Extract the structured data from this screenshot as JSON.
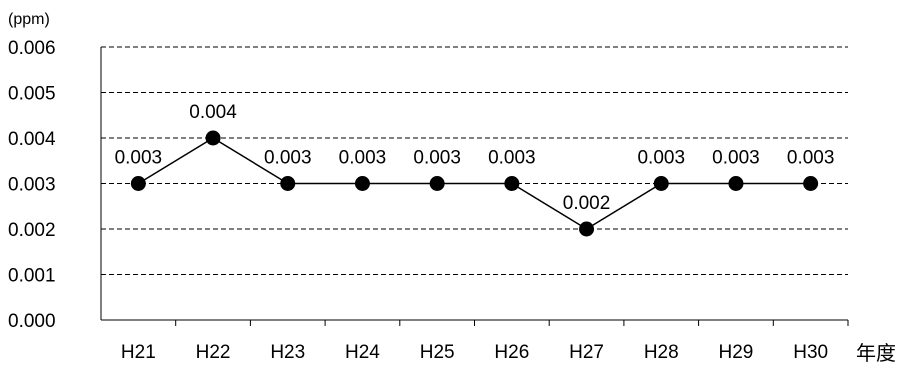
{
  "chart_data": {
    "type": "line",
    "categories": [
      "H21",
      "H22",
      "H23",
      "H24",
      "H25",
      "H26",
      "H27",
      "H28",
      "H29",
      "H30"
    ],
    "series": [
      {
        "values": [
          0.003,
          0.004,
          0.003,
          0.003,
          0.003,
          0.003,
          0.002,
          0.003,
          0.003,
          0.003
        ]
      }
    ],
    "data_labels": [
      "0.003",
      "0.004",
      "0.003",
      "0.003",
      "0.003",
      "0.003",
      "0.002",
      "0.003",
      "0.003",
      "0.003"
    ],
    "y_ticks": [
      "0.000",
      "0.001",
      "0.002",
      "0.003",
      "0.004",
      "0.005",
      "0.006"
    ],
    "ylim": [
      0,
      0.006
    ],
    "ylabel": "(ppm)",
    "xlabel": "年度",
    "grid": "horizontal dashed",
    "legend": "none",
    "colors": {
      "line": "#000000",
      "marker": "#000000",
      "grid": "#000000"
    }
  }
}
